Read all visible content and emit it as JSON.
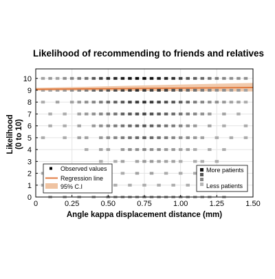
{
  "chart_data": {
    "type": "scatter",
    "title": "Likelihood of recommending to friends and relatives",
    "xlabel": "Angle kappa displacement distance (mm)",
    "ylabel": [
      "Likelihood",
      "(0 to 10)"
    ],
    "xlim": [
      0,
      1.5
    ],
    "ylim": [
      0,
      10.8
    ],
    "xticks": [
      0,
      0.25,
      0.5,
      0.75,
      1.0,
      1.25,
      1.5
    ],
    "xtick_labels": [
      "0",
      "0.25",
      "0.50",
      "0.75",
      "1.00",
      "1.25",
      "1.50"
    ],
    "yticks": [
      0,
      1,
      2,
      3,
      4,
      5,
      6,
      7,
      8,
      9,
      10
    ],
    "ytick_labels": [
      "0",
      "1",
      "2",
      "3",
      "4",
      "5",
      "6",
      "7",
      "8",
      "9",
      "10"
    ],
    "grid": true,
    "regression": {
      "intercept": 9.08,
      "slope": 0.1,
      "ci_low_start": 8.98,
      "ci_high_start": 9.2,
      "ci_low_end": 8.9,
      "ci_high_end": 9.62,
      "color": "#e07a3f",
      "ci_color": "#efc3a2"
    },
    "rows": [
      {
        "y": 10,
        "x": [
          0.05,
          0.1,
          0.15,
          0.2,
          0.25,
          0.3,
          0.35,
          0.4,
          0.45,
          0.5,
          0.55,
          0.6,
          0.65,
          0.7,
          0.75,
          0.8,
          0.85,
          0.9,
          0.95,
          1.0,
          1.05,
          1.1,
          1.15,
          1.2,
          1.25,
          1.3,
          1.35,
          1.4,
          1.45
        ],
        "d": [
          0.2,
          0.25,
          0.2,
          0.3,
          0.35,
          0.4,
          0.45,
          0.6,
          0.7,
          0.8,
          0.85,
          0.9,
          0.95,
          1,
          1,
          0.95,
          0.9,
          0.85,
          0.8,
          0.7,
          0.6,
          0.55,
          0.5,
          0.45,
          0.4,
          0.35,
          0.3,
          0.3,
          0.3
        ]
      },
      {
        "y": 9,
        "x": [
          0.05,
          0.1,
          0.15,
          0.2,
          0.25,
          0.3,
          0.35,
          0.4,
          0.45,
          0.5,
          0.55,
          0.6,
          0.65,
          0.7,
          0.75,
          0.8,
          0.85,
          0.9,
          0.95,
          1.0,
          1.05,
          1.1,
          1.15,
          1.2,
          1.25,
          1.3,
          1.35,
          1.4,
          1.45
        ],
        "d": [
          0.2,
          0.2,
          0.25,
          0.25,
          0.3,
          0.35,
          0.4,
          0.5,
          0.55,
          0.6,
          0.65,
          0.7,
          0.75,
          0.8,
          0.75,
          0.7,
          0.75,
          0.7,
          0.6,
          0.55,
          0.5,
          0.45,
          0.4,
          0.35,
          0.3,
          0.3,
          0.25,
          0.25,
          0.2
        ]
      },
      {
        "y": 8,
        "x": [
          0.05,
          0.15,
          0.25,
          0.3,
          0.35,
          0.4,
          0.45,
          0.5,
          0.55,
          0.6,
          0.65,
          0.7,
          0.75,
          0.8,
          0.85,
          0.9,
          0.95,
          1.0,
          1.05,
          1.1,
          1.15,
          1.2,
          1.25,
          1.3,
          1.35,
          1.4,
          1.45
        ],
        "d": [
          0.15,
          0.2,
          0.2,
          0.25,
          0.3,
          0.35,
          0.4,
          0.5,
          0.55,
          0.6,
          0.7,
          0.75,
          0.8,
          0.75,
          0.7,
          0.65,
          0.6,
          0.55,
          0.5,
          0.4,
          0.35,
          0.3,
          0.3,
          0.25,
          0.2,
          0.2,
          0.15
        ]
      },
      {
        "y": 7,
        "x": [
          0.1,
          0.2,
          0.3,
          0.35,
          0.4,
          0.45,
          0.5,
          0.55,
          0.6,
          0.65,
          0.7,
          0.75,
          0.8,
          0.85,
          0.9,
          0.95,
          1.0,
          1.05,
          1.1,
          1.15,
          1.2,
          1.3,
          1.4
        ],
        "d": [
          0.15,
          0.15,
          0.2,
          0.25,
          0.3,
          0.35,
          0.4,
          0.45,
          0.55,
          0.6,
          0.65,
          0.7,
          0.65,
          0.6,
          0.55,
          0.5,
          0.45,
          0.4,
          0.35,
          0.3,
          0.25,
          0.2,
          0.15
        ]
      },
      {
        "y": 6,
        "x": [
          0.1,
          0.2,
          0.3,
          0.4,
          0.45,
          0.5,
          0.55,
          0.6,
          0.65,
          0.7,
          0.75,
          0.8,
          0.85,
          0.9,
          0.95,
          1.0,
          1.05,
          1.1,
          1.2,
          1.3,
          1.45
        ],
        "d": [
          0.15,
          0.15,
          0.2,
          0.25,
          0.3,
          0.35,
          0.4,
          0.45,
          0.5,
          0.55,
          0.6,
          0.55,
          0.5,
          0.45,
          0.4,
          0.35,
          0.3,
          0.25,
          0.2,
          0.15,
          0.15
        ]
      },
      {
        "y": 5,
        "x": [
          0.05,
          0.2,
          0.3,
          0.35,
          0.45,
          0.5,
          0.55,
          0.6,
          0.65,
          0.7,
          0.75,
          0.8,
          0.85,
          0.9,
          0.95,
          1.0,
          1.05,
          1.1,
          1.15,
          1.25,
          1.35,
          1.45
        ],
        "d": [
          0.15,
          0.15,
          0.2,
          0.2,
          0.25,
          0.3,
          0.35,
          0.4,
          0.45,
          0.5,
          0.55,
          0.5,
          0.45,
          0.4,
          0.35,
          0.3,
          0.3,
          0.25,
          0.2,
          0.15,
          0.15,
          0.15
        ]
      },
      {
        "y": 4,
        "x": [
          0.35,
          0.45,
          0.5,
          0.6,
          0.65,
          0.7,
          0.75,
          0.8,
          0.85,
          0.9,
          0.95,
          1.0,
          1.05,
          1.1,
          1.2,
          1.3
        ],
        "d": [
          0.15,
          0.2,
          0.2,
          0.25,
          0.3,
          0.3,
          0.35,
          0.3,
          0.3,
          0.25,
          0.25,
          0.2,
          0.2,
          0.15,
          0.15,
          0.15
        ]
      },
      {
        "y": 3,
        "x": [
          0.45,
          0.55,
          0.6,
          0.7,
          0.75,
          0.8,
          0.85,
          0.9,
          0.95,
          1.0,
          1.1,
          1.15,
          1.25
        ],
        "d": [
          0.15,
          0.15,
          0.2,
          0.2,
          0.25,
          0.25,
          0.2,
          0.2,
          0.2,
          0.15,
          0.15,
          0.15,
          0.15
        ]
      },
      {
        "y": 2,
        "x": [
          0.05,
          0.15,
          0.2,
          0.3,
          0.5,
          0.6,
          0.7,
          0.8,
          0.9,
          1.0,
          1.1,
          1.15,
          1.25
        ],
        "d": [
          0.15,
          0.15,
          0.15,
          0.15,
          0.15,
          0.15,
          0.2,
          0.2,
          0.15,
          0.15,
          0.15,
          0.15,
          0.15
        ]
      },
      {
        "y": 1,
        "x": [
          0.05,
          0.1,
          0.15,
          0.25,
          0.45,
          0.55,
          0.65,
          0.75,
          0.85,
          0.95,
          1.05,
          1.15,
          1.3
        ],
        "d": [
          0.15,
          0.15,
          0.15,
          0.15,
          0.15,
          0.15,
          0.15,
          0.15,
          0.15,
          0.15,
          0.15,
          0.15,
          0.15
        ]
      },
      {
        "y": 0,
        "x": [
          0.1,
          0.2,
          0.3,
          0.4,
          0.5,
          0.55,
          0.6,
          0.65,
          0.7,
          0.75,
          0.8,
          0.85,
          0.9,
          0.95,
          1.0,
          1.05,
          1.1,
          1.15,
          1.2,
          1.3
        ],
        "d": [
          0.15,
          0.15,
          0.15,
          0.15,
          0.2,
          0.2,
          0.2,
          0.2,
          0.2,
          0.2,
          0.2,
          0.2,
          0.2,
          0.2,
          0.2,
          0.2,
          0.15,
          0.15,
          0.15,
          0.15
        ]
      }
    ],
    "legend_left": {
      "placement": "bottom-left",
      "items": [
        {
          "label": "Observed values",
          "marker": "square"
        },
        {
          "label": "Regression line",
          "marker": "line"
        },
        {
          "label": "95% C.I",
          "marker": "band"
        }
      ]
    },
    "legend_right": {
      "placement": "bottom-right",
      "top_label": "More patients",
      "bottom_label": "Less patients"
    }
  }
}
